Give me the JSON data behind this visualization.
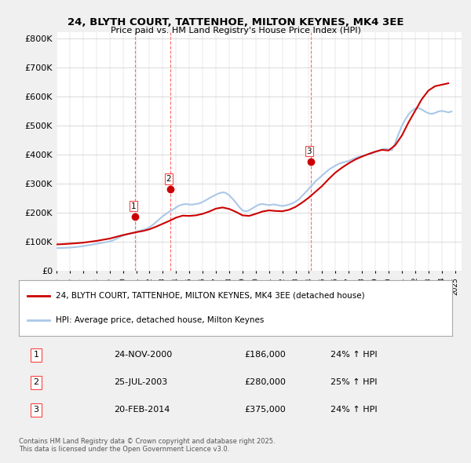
{
  "title": "24, BLYTH COURT, TATTENHOE, MILTON KEYNES, MK4 3EE",
  "subtitle": "Price paid vs. HM Land Registry's House Price Index (HPI)",
  "ylabel_ticks": [
    "£0",
    "£100K",
    "£200K",
    "£300K",
    "£400K",
    "£500K",
    "£600K",
    "£700K",
    "£800K"
  ],
  "ytick_values": [
    0,
    100000,
    200000,
    300000,
    400000,
    500000,
    600000,
    700000,
    800000
  ],
  "ylim": [
    0,
    820000
  ],
  "xlim_start": 1995.0,
  "xlim_end": 2025.5,
  "background_color": "#f0f0f0",
  "plot_bg_color": "#ffffff",
  "grid_color": "#cccccc",
  "red_line_color": "#cc0000",
  "blue_line_color": "#aac8e8",
  "vline_color": "#ff4444",
  "vline_style": "--",
  "sale_markers": [
    {
      "year": 2000.9,
      "price": 186000,
      "label": "1"
    },
    {
      "year": 2003.56,
      "price": 280000,
      "label": "2"
    },
    {
      "year": 2014.13,
      "price": 375000,
      "label": "3"
    }
  ],
  "legend_red_label": "24, BLYTH COURT, TATTENHOE, MILTON KEYNES, MK4 3EE (detached house)",
  "legend_blue_label": "HPI: Average price, detached house, Milton Keynes",
  "table_rows": [
    {
      "num": "1",
      "date": "24-NOV-2000",
      "price": "£186,000",
      "change": "24% ↑ HPI"
    },
    {
      "num": "2",
      "date": "25-JUL-2003",
      "price": "£280,000",
      "change": "25% ↑ HPI"
    },
    {
      "num": "3",
      "date": "20-FEB-2014",
      "price": "£375,000",
      "change": "24% ↑ HPI"
    }
  ],
  "footer": "Contains HM Land Registry data © Crown copyright and database right 2025.\nThis data is licensed under the Open Government Licence v3.0.",
  "hpi_data": {
    "years": [
      1995.0,
      1995.25,
      1995.5,
      1995.75,
      1996.0,
      1996.25,
      1996.5,
      1996.75,
      1997.0,
      1997.25,
      1997.5,
      1997.75,
      1998.0,
      1998.25,
      1998.5,
      1998.75,
      1999.0,
      1999.25,
      1999.5,
      1999.75,
      2000.0,
      2000.25,
      2000.5,
      2000.75,
      2001.0,
      2001.25,
      2001.5,
      2001.75,
      2002.0,
      2002.25,
      2002.5,
      2002.75,
      2003.0,
      2003.25,
      2003.5,
      2003.75,
      2004.0,
      2004.25,
      2004.5,
      2004.75,
      2005.0,
      2005.25,
      2005.5,
      2005.75,
      2006.0,
      2006.25,
      2006.5,
      2006.75,
      2007.0,
      2007.25,
      2007.5,
      2007.75,
      2008.0,
      2008.25,
      2008.5,
      2008.75,
      2009.0,
      2009.25,
      2009.5,
      2009.75,
      2010.0,
      2010.25,
      2010.5,
      2010.75,
      2011.0,
      2011.25,
      2011.5,
      2011.75,
      2012.0,
      2012.25,
      2012.5,
      2012.75,
      2013.0,
      2013.25,
      2013.5,
      2013.75,
      2014.0,
      2014.25,
      2014.5,
      2014.75,
      2015.0,
      2015.25,
      2015.5,
      2015.75,
      2016.0,
      2016.25,
      2016.5,
      2016.75,
      2017.0,
      2017.25,
      2017.5,
      2017.75,
      2018.0,
      2018.25,
      2018.5,
      2018.75,
      2019.0,
      2019.25,
      2019.5,
      2019.75,
      2020.0,
      2020.25,
      2020.5,
      2020.75,
      2021.0,
      2021.25,
      2021.5,
      2021.75,
      2022.0,
      2022.25,
      2022.5,
      2022.75,
      2023.0,
      2023.25,
      2023.5,
      2023.75,
      2024.0,
      2024.25,
      2024.5,
      2024.75
    ],
    "values": [
      78000,
      78500,
      79000,
      79500,
      80000,
      81000,
      82000,
      83500,
      85000,
      87000,
      89000,
      91000,
      93000,
      95000,
      97000,
      99000,
      101000,
      105000,
      110000,
      116000,
      121000,
      125000,
      128000,
      131000,
      134000,
      138000,
      141000,
      144000,
      150000,
      158000,
      168000,
      178000,
      188000,
      196000,
      204000,
      210000,
      218000,
      225000,
      228000,
      230000,
      228000,
      228000,
      230000,
      232000,
      237000,
      243000,
      250000,
      256000,
      262000,
      267000,
      270000,
      268000,
      260000,
      248000,
      235000,
      220000,
      208000,
      205000,
      208000,
      215000,
      222000,
      228000,
      230000,
      228000,
      226000,
      228000,
      228000,
      225000,
      223000,
      225000,
      228000,
      232000,
      238000,
      246000,
      258000,
      270000,
      282000,
      295000,
      308000,
      318000,
      328000,
      338000,
      348000,
      355000,
      362000,
      368000,
      372000,
      375000,
      378000,
      383000,
      388000,
      392000,
      395000,
      398000,
      401000,
      404000,
      408000,
      413000,
      418000,
      420000,
      418000,
      415000,
      440000,
      470000,
      498000,
      520000,
      538000,
      550000,
      558000,
      560000,
      555000,
      548000,
      542000,
      540000,
      543000,
      548000,
      550000,
      548000,
      545000,
      548000
    ]
  },
  "property_data": {
    "years": [
      1995.0,
      1995.5,
      1996.0,
      1996.5,
      1997.0,
      1997.5,
      1998.0,
      1998.5,
      1999.0,
      1999.5,
      2000.0,
      2000.5,
      2001.0,
      2001.5,
      2002.0,
      2002.5,
      2003.0,
      2003.5,
      2004.0,
      2004.5,
      2005.0,
      2005.5,
      2006.0,
      2006.5,
      2007.0,
      2007.5,
      2008.0,
      2008.5,
      2009.0,
      2009.5,
      2010.0,
      2010.5,
      2011.0,
      2011.5,
      2012.0,
      2012.5,
      2013.0,
      2013.5,
      2014.0,
      2014.5,
      2015.0,
      2015.5,
      2016.0,
      2016.5,
      2017.0,
      2017.5,
      2018.0,
      2018.5,
      2019.0,
      2019.5,
      2020.0,
      2020.5,
      2021.0,
      2021.5,
      2022.0,
      2022.5,
      2023.0,
      2023.5,
      2024.0,
      2024.5
    ],
    "values": [
      91000,
      92000,
      93500,
      95000,
      97000,
      100000,
      103000,
      107000,
      111000,
      117000,
      123000,
      128000,
      133000,
      137000,
      143000,
      152000,
      162000,
      172000,
      183000,
      190000,
      189000,
      191000,
      196000,
      204000,
      214000,
      218000,
      213000,
      203000,
      191000,
      189000,
      196000,
      204000,
      208000,
      206000,
      205000,
      210000,
      220000,
      235000,
      252000,
      272000,
      292000,
      316000,
      338000,
      355000,
      370000,
      383000,
      393000,
      402000,
      410000,
      416000,
      414000,
      432000,
      465000,
      510000,
      550000,
      590000,
      620000,
      635000,
      640000,
      645000
    ]
  }
}
